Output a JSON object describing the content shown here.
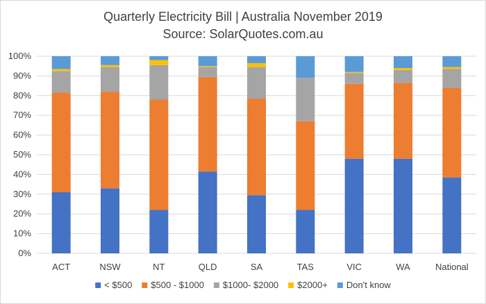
{
  "chart_data": {
    "type": "bar",
    "stacked": true,
    "title": "Quarterly Electricity Bill | Australia November 2019",
    "subtitle": "Source: SolarQuotes.com.au",
    "categories": [
      "ACT",
      "NSW",
      "NT",
      "QLD",
      "SA",
      "TAS",
      "VIC",
      "WA",
      "National"
    ],
    "series": [
      {
        "name": "< $500",
        "color": "#4472C4",
        "values": [
          31,
          33,
          22,
          41.5,
          29.5,
          22,
          48,
          48,
          38.5
        ]
      },
      {
        "name": "$500 - $1000",
        "color": "#ED7D31",
        "values": [
          50.5,
          49,
          56,
          48,
          49,
          45,
          38,
          38.5,
          45.5
        ]
      },
      {
        "name": "$1000- $2000",
        "color": "#A5A5A5",
        "values": [
          11,
          12.5,
          17.5,
          5,
          16,
          22,
          5.5,
          6.5,
          9.5
        ]
      },
      {
        "name": "$2000+",
        "color": "#FFC000",
        "values": [
          1,
          1,
          2.5,
          0.5,
          2,
          0,
          0.5,
          1,
          1
        ]
      },
      {
        "name": "Don't know",
        "color": "#5B9BD5",
        "values": [
          6.5,
          4.5,
          2,
          5,
          3.5,
          11,
          8,
          6,
          5.5
        ]
      }
    ],
    "yticks": [
      "0%",
      "10%",
      "20%",
      "30%",
      "40%",
      "50%",
      "60%",
      "70%",
      "80%",
      "90%",
      "100%"
    ],
    "ylim": [
      0,
      100
    ],
    "grid": true,
    "legend_position": "bottom"
  }
}
